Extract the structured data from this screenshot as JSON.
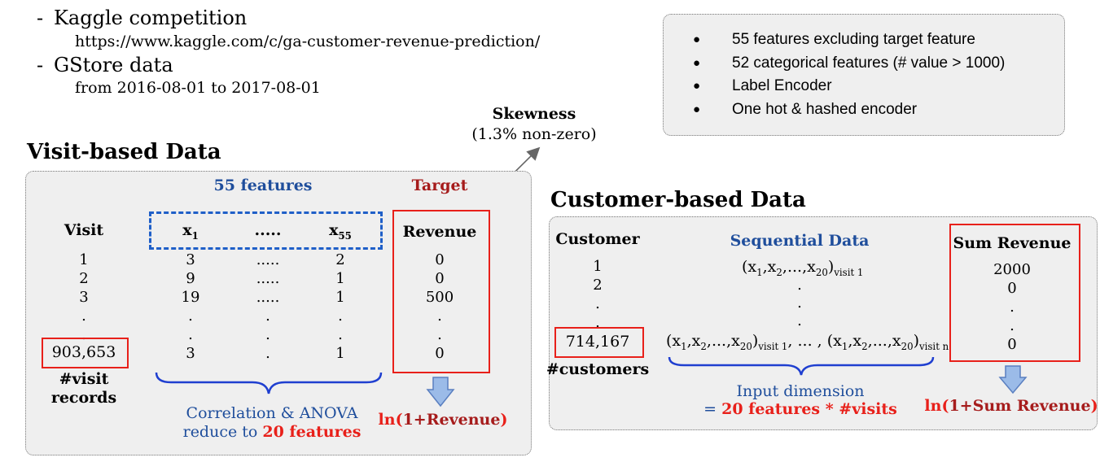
{
  "intro": {
    "item1": "Kaggle competition",
    "item1_url": "https://www.kaggle.com/c/ga-customer-revenue-prediction/",
    "item2": "GStore data",
    "item2_range": "from 2016-08-01 to 2017-08-01",
    "dash": "-"
  },
  "notes": [
    "55 features excluding target feature",
    "52 categorical features (# value > 1000)",
    "Label Encoder",
    "One hot & hashed encoder"
  ],
  "skewness": {
    "title": "Skewness",
    "subtitle": "(1.3% non-zero)"
  },
  "visit": {
    "title": "Visit-based Data",
    "features_label": "55 features",
    "target_label": "Target",
    "col_visit": "Visit",
    "x_var": "x",
    "x_first_sub": "1",
    "x_dots": ".....",
    "x_last_sub": "55",
    "col_revenue": "Revenue",
    "visit_values": [
      "1",
      "2",
      "3",
      ".",
      "."
    ],
    "visit_total": "903,653",
    "visit_total_caption": "#visit\nrecords",
    "x1_values": [
      "3",
      "9",
      "19",
      ".",
      ".",
      "3"
    ],
    "mid_values": [
      ".....",
      ".....",
      ".....",
      ".",
      ".",
      "."
    ],
    "x55_values": [
      "2",
      "1",
      "1",
      ".",
      ".",
      "1"
    ],
    "revenue_values": [
      "0",
      "0",
      "500",
      ".",
      ".",
      "0"
    ],
    "reduce_line1": "Correlation & ANOVA",
    "reduce_line2_a": "reduce to ",
    "reduce_line2_b": "20 features",
    "transform_a": "ln(",
    "transform_b": "1+Revenue",
    "transform_c": ")"
  },
  "customer": {
    "title": "Customer-based Data",
    "col_customer": "Customer",
    "seq_label": "Sequential Data",
    "col_sum": "Sum Revenue",
    "customer_values": [
      "1",
      "2",
      ".",
      "."
    ],
    "customer_total": "714,167",
    "customer_total_caption": "#customers",
    "seq_first": "(x",
    "seq_dots": [
      ".",
      ".",
      "."
    ],
    "seq_visit1": "visit 1",
    "seq_visitn": "visit n",
    "seq_middle": ", ... ,",
    "seq_ellipsis": "...",
    "sum_values": [
      "2000",
      "0",
      ".",
      ".",
      "0"
    ],
    "input_line1": "Input dimension",
    "input_line2_a": "= ",
    "input_line2_b": "20 features * #visits",
    "transform_a": "ln(",
    "transform_b": "1+Sum Revenue",
    "transform_c": ")"
  },
  "colors": {
    "blue": "#1f4e9c",
    "red": "#e8201a",
    "dark_red": "#a61c1c",
    "arrow_fill": "#9bbbe8",
    "panel": "#efefef"
  }
}
